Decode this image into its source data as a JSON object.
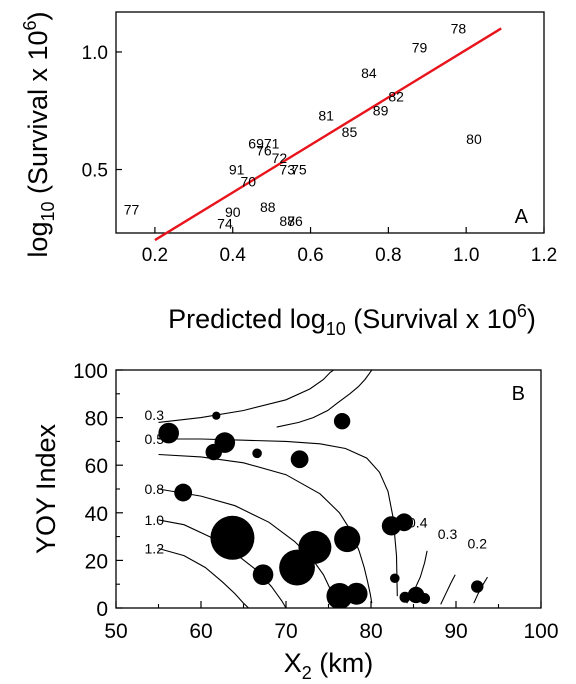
{
  "chart_data": [
    {
      "type": "scatter",
      "panel_label": "A",
      "xlabel": "Predicted log10 (Survival x 10^6)",
      "xlabel_parts": [
        "Predicted log",
        "10",
        " (Survival x 10",
        "6",
        ")"
      ],
      "ylabel": "log10 (Survival x 10^6)",
      "ylabel_parts": [
        "log",
        "10",
        " (Survival x 10",
        "6",
        ")"
      ],
      "xlim": [
        0.1,
        1.2
      ],
      "ylim": [
        0.23,
        1.17
      ],
      "xticks": [
        0.2,
        0.4,
        0.6,
        0.8,
        1.0,
        1.2
      ],
      "xtick_labels": [
        "0.2",
        "0.4",
        "0.6",
        "0.8",
        "1.0",
        "1.2"
      ],
      "yticks": [
        0.5,
        1.0
      ],
      "ytick_labels": [
        "0.5",
        "1.0"
      ],
      "fit_line": {
        "x": [
          0.2,
          1.09
        ],
        "y": [
          0.2,
          1.1
        ],
        "color": "#e8141c"
      },
      "points": [
        {
          "label": "77",
          "x": 0.14,
          "y": 0.33
        },
        {
          "label": "90",
          "x": 0.4,
          "y": 0.32
        },
        {
          "label": "74",
          "x": 0.38,
          "y": 0.27
        },
        {
          "label": "88",
          "x": 0.49,
          "y": 0.34
        },
        {
          "label": "87",
          "x": 0.54,
          "y": 0.28
        },
        {
          "label": "86",
          "x": 0.56,
          "y": 0.28
        },
        {
          "label": "91",
          "x": 0.41,
          "y": 0.5
        },
        {
          "label": "70",
          "x": 0.44,
          "y": 0.45
        },
        {
          "label": "69",
          "x": 0.46,
          "y": 0.61
        },
        {
          "label": "71",
          "x": 0.5,
          "y": 0.61
        },
        {
          "label": "76",
          "x": 0.48,
          "y": 0.58
        },
        {
          "label": "72",
          "x": 0.52,
          "y": 0.55
        },
        {
          "label": "73",
          "x": 0.54,
          "y": 0.5
        },
        {
          "label": "75",
          "x": 0.57,
          "y": 0.5
        },
        {
          "label": "81",
          "x": 0.64,
          "y": 0.73
        },
        {
          "label": "85",
          "x": 0.7,
          "y": 0.66
        },
        {
          "label": "89",
          "x": 0.78,
          "y": 0.75
        },
        {
          "label": "82",
          "x": 0.82,
          "y": 0.81
        },
        {
          "label": "84",
          "x": 0.75,
          "y": 0.91
        },
        {
          "label": "79",
          "x": 0.88,
          "y": 1.02
        },
        {
          "label": "78",
          "x": 0.98,
          "y": 1.1
        },
        {
          "label": "80",
          "x": 1.02,
          "y": 0.63
        }
      ]
    },
    {
      "type": "scatter",
      "panel_label": "B",
      "xlabel": "X2 (km)",
      "xlabel_parts": [
        "X",
        "2",
        " (km)"
      ],
      "ylabel": "YOY Index",
      "xlim": [
        50,
        100
      ],
      "ylim": [
        0,
        100
      ],
      "xticks": [
        50,
        60,
        70,
        80,
        90,
        100
      ],
      "xtick_labels": [
        "50",
        "60",
        "70",
        "80",
        "90",
        "100"
      ],
      "yticks": [
        0,
        20,
        40,
        60,
        80,
        100
      ],
      "ytick_labels": [
        "0",
        "20",
        "40",
        "60",
        "80",
        "100"
      ],
      "contours": [
        {
          "label": "0.3",
          "x": [
            55,
            60,
            65,
            70,
            72.8,
            74.4,
            75.2,
            75.6
          ],
          "y": [
            78,
            80,
            83,
            87.5,
            92,
            96,
            99,
            100
          ]
        },
        {
          "label": "",
          "x": [
            68.9,
            71.5,
            73.2,
            74.9,
            76.0,
            77.5,
            78.5,
            79.3,
            79.8,
            80.1
          ],
          "y": [
            76,
            78,
            80,
            83,
            86,
            90,
            93,
            96,
            98.5,
            100
          ]
        },
        {
          "label": "0.5",
          "x": [
            55,
            60,
            65,
            70,
            74,
            77,
            79.5,
            81.0,
            82.0,
            82.6,
            83.0,
            83.1
          ],
          "y": [
            71,
            71,
            70.5,
            70,
            69,
            67,
            63,
            57,
            49,
            38,
            22,
            5
          ]
        },
        {
          "label": "",
          "x": [
            55,
            60,
            65,
            70,
            74.0,
            76.3,
            77.7,
            78.6,
            79.2,
            79.6,
            79.9,
            80.1
          ],
          "y": [
            64.5,
            63.5,
            61,
            56,
            48,
            40,
            32,
            24,
            17,
            11,
            6,
            2
          ]
        },
        {
          "label": "0.8",
          "x": [
            55,
            60,
            64,
            68,
            71.0,
            73.0,
            74.4,
            75.2,
            75.6
          ],
          "y": [
            50,
            47,
            43,
            36,
            28,
            21,
            14,
            8,
            4
          ]
        },
        {
          "label": "1.0",
          "x": [
            55,
            58,
            61,
            64,
            66.5,
            68.3,
            69.5,
            70.0
          ],
          "y": [
            37,
            35,
            30,
            23,
            16,
            9,
            3,
            0
          ]
        },
        {
          "label": "1.2",
          "x": [
            55,
            58,
            60.5,
            62.5,
            64.0,
            65.0,
            65.6
          ],
          "y": [
            25,
            22,
            17,
            11,
            6,
            2,
            0
          ]
        },
        {
          "label": "0.4",
          "x": [
            84.2,
            85.1,
            85.8,
            86.3,
            86.6
          ],
          "y": [
            2,
            7.5,
            13,
            19,
            24
          ]
        },
        {
          "label": "0.3",
          "x": [
            88.2,
            88.8,
            89.4,
            89.9
          ],
          "y": [
            1.5,
            6,
            10.5,
            14
          ]
        },
        {
          "label": "0.2",
          "x": [
            92.1,
            92.6,
            93.2,
            93.7
          ],
          "y": [
            2,
            6,
            10,
            13
          ]
        }
      ],
      "contour_label_positions": [
        {
          "label": "0.3",
          "x": 54.5,
          "y": 81
        },
        {
          "label": "0.5",
          "x": 54.5,
          "y": 71
        },
        {
          "label": "0.8",
          "x": 54.5,
          "y": 50
        },
        {
          "label": "1.0",
          "x": 54.5,
          "y": 37
        },
        {
          "label": "1.2",
          "x": 54.5,
          "y": 25
        },
        {
          "label": "0.4",
          "x": 85.5,
          "y": 36
        },
        {
          "label": "0.3",
          "x": 89.0,
          "y": 31
        },
        {
          "label": "0.2",
          "x": 92.5,
          "y": 27
        }
      ],
      "bubbles": [
        {
          "x": 56.2,
          "y": 73.5,
          "size": 0.75
        },
        {
          "x": 61.8,
          "y": 80.8,
          "size": 0.3
        },
        {
          "x": 61.5,
          "y": 65.5,
          "size": 0.6
        },
        {
          "x": 62.8,
          "y": 69.5,
          "size": 0.75
        },
        {
          "x": 66.6,
          "y": 65.0,
          "size": 0.35
        },
        {
          "x": 71.6,
          "y": 62.5,
          "size": 0.65
        },
        {
          "x": 76.6,
          "y": 78.5,
          "size": 0.6
        },
        {
          "x": 57.9,
          "y": 48.5,
          "size": 0.65
        },
        {
          "x": 63.7,
          "y": 29.5,
          "size": 1.6
        },
        {
          "x": 67.3,
          "y": 14.0,
          "size": 0.75
        },
        {
          "x": 71.3,
          "y": 17.0,
          "size": 1.3
        },
        {
          "x": 73.4,
          "y": 25.5,
          "size": 1.2
        },
        {
          "x": 77.2,
          "y": 29.0,
          "size": 0.95
        },
        {
          "x": 76.3,
          "y": 5.0,
          "size": 0.95
        },
        {
          "x": 78.3,
          "y": 6.0,
          "size": 0.8
        },
        {
          "x": 82.4,
          "y": 34.5,
          "size": 0.7
        },
        {
          "x": 83.9,
          "y": 36.0,
          "size": 0.65
        },
        {
          "x": 82.8,
          "y": 12.5,
          "size": 0.35
        },
        {
          "x": 84.0,
          "y": 4.5,
          "size": 0.4
        },
        {
          "x": 85.3,
          "y": 5.5,
          "size": 0.6
        },
        {
          "x": 86.3,
          "y": 4.0,
          "size": 0.4
        },
        {
          "x": 92.5,
          "y": 9.0,
          "size": 0.45
        }
      ]
    }
  ]
}
